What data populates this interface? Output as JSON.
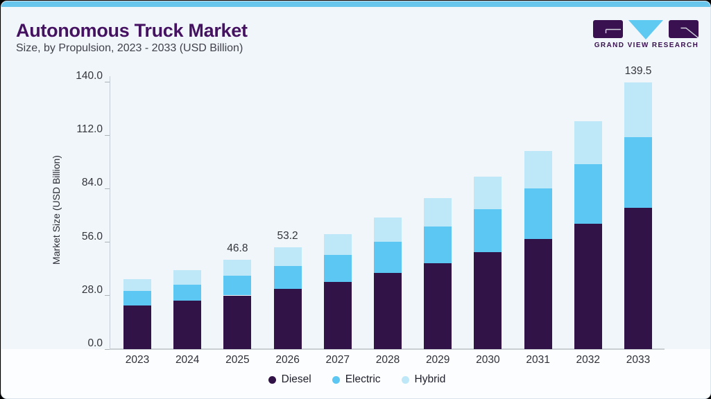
{
  "page": {
    "title": "Autonomous Truck Market",
    "subtitle": "Size, by Propulsion, 2023 - 2033 (USD Billion)"
  },
  "logo": {
    "text": "GRAND VIEW RESEARCH",
    "purple": "#3a1150",
    "blue": "#5ec9f1"
  },
  "chart_data": {
    "type": "bar",
    "stacked": true,
    "title": "Autonomous Truck Market",
    "subtitle": "Size, by Propulsion, 2023 - 2033 (USD Billion)",
    "categories": [
      "2023",
      "2024",
      "2025",
      "2026",
      "2027",
      "2028",
      "2029",
      "2030",
      "2031",
      "2032",
      "2033"
    ],
    "series": [
      {
        "name": "Diesel",
        "color": "#321347",
        "values": [
          23.0,
          25.5,
          28.1,
          31.7,
          35.3,
          39.9,
          45.1,
          50.8,
          57.6,
          65.5,
          74.1
        ]
      },
      {
        "name": "Electric",
        "color": "#5bc7f2",
        "values": [
          7.4,
          8.3,
          10.2,
          11.9,
          13.9,
          16.2,
          19.0,
          22.6,
          26.7,
          31.2,
          36.9
        ]
      },
      {
        "name": "Hybrid",
        "color": "#bee7f8",
        "values": [
          6.4,
          7.4,
          8.5,
          9.6,
          10.9,
          12.7,
          14.9,
          16.9,
          19.4,
          22.8,
          28.5
        ]
      }
    ],
    "totals": [
      36.8,
      41.2,
      46.8,
      53.2,
      60.1,
      68.8,
      79.0,
      90.3,
      103.7,
      119.5,
      139.5
    ],
    "bar_labels": [
      "",
      "",
      "46.8",
      "53.2",
      "",
      "",
      "",
      "",
      "",
      "",
      "139.5"
    ],
    "ylabel": "Market Size (USD Billion)",
    "yticks": [
      "0.0",
      "28.0",
      "56.0",
      "84.0",
      "112.0",
      "140.0"
    ],
    "ylim": [
      0,
      140
    ],
    "grid": false,
    "legend_position": "bottom",
    "legend": [
      "Diesel",
      "Electric",
      "Hybrid"
    ]
  }
}
